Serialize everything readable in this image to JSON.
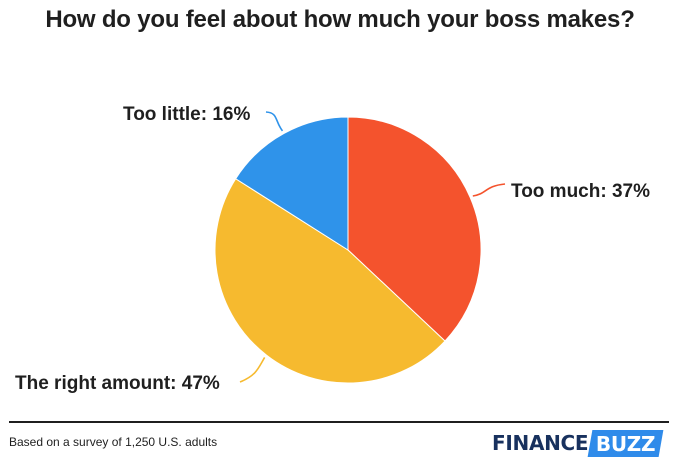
{
  "chart_data": {
    "type": "pie",
    "title": "How do you feel about how much your boss makes?",
    "slices": [
      {
        "label": "Too much: 37%",
        "value": 37,
        "color": "#f4532d"
      },
      {
        "label": "The right amount: 47%",
        "value": 47,
        "color": "#f6ba2f"
      },
      {
        "label": "Too little: 16%",
        "value": 16,
        "color": "#2f93ea"
      }
    ],
    "start": "top, clockwise"
  },
  "footer": {
    "note": "Based on a survey of 1,250 U.S. adults",
    "logo_part1": "FINANCE",
    "logo_part2": "BUZZ",
    "rule_color": "#1f1f1f"
  }
}
